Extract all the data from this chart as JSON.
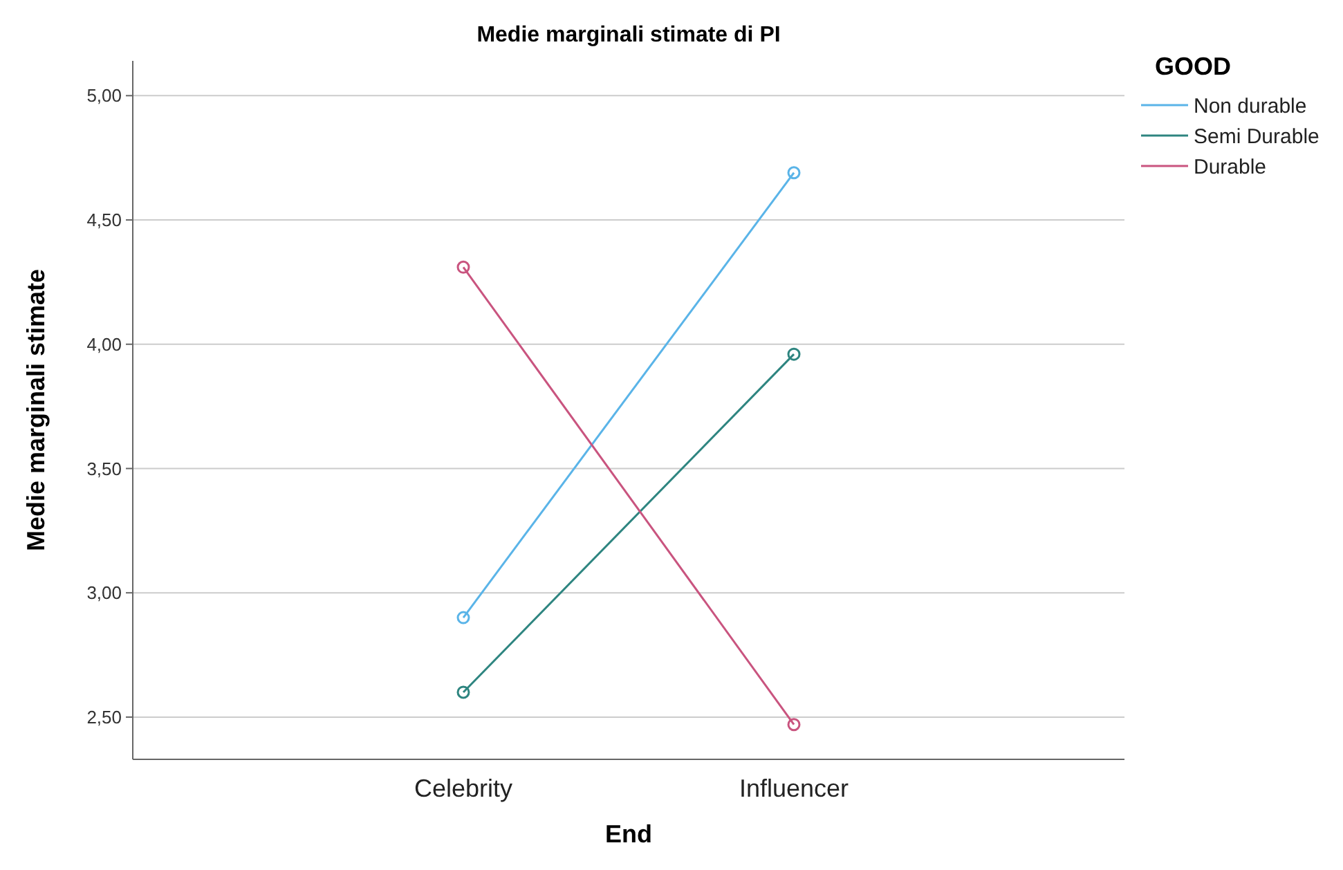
{
  "chart_data": {
    "type": "line",
    "title": "Medie marginali stimate di PI",
    "xlabel": "End",
    "ylabel": "Medie marginali stimate",
    "legend_title": "GOOD",
    "categories": [
      "Celebrity",
      "Influencer"
    ],
    "series": [
      {
        "name": "Non durable",
        "color": "#5ab4e8",
        "values": [
          2.9,
          4.69
        ]
      },
      {
        "name": "Semi Durable",
        "color": "#2e8580",
        "values": [
          2.6,
          3.96
        ]
      },
      {
        "name": "Durable",
        "color": "#c9547f",
        "values": [
          4.31,
          2.47
        ]
      }
    ],
    "ylim": [
      2.33,
      5.14
    ],
    "yticks": [
      {
        "value": 2.5,
        "label": "2,50"
      },
      {
        "value": 3,
        "label": "3,00"
      },
      {
        "value": 3.5,
        "label": "3,50"
      },
      {
        "value": 4,
        "label": "4,00"
      },
      {
        "value": 4.5,
        "label": "4,50"
      },
      {
        "value": 5,
        "label": "5,00"
      }
    ],
    "grid": "y",
    "legend": "top right",
    "marker": "circle"
  }
}
